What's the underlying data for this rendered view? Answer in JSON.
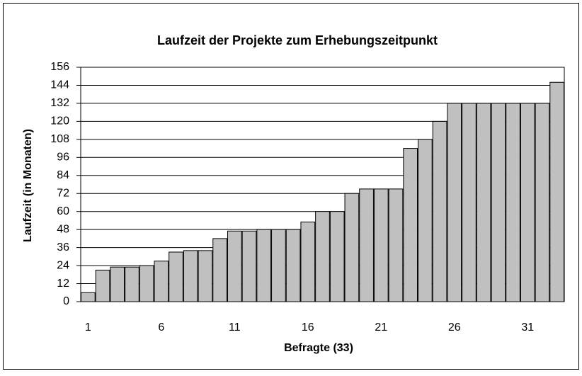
{
  "chart_data": {
    "type": "bar",
    "title": "Laufzeit der Projekte zum Erhebungszeitpunkt",
    "x_label": "Befragte (33)",
    "y_label": "Laufzeit  (in Monaten)",
    "categories": [
      1,
      null,
      null,
      null,
      null,
      6,
      null,
      null,
      null,
      null,
      11,
      null,
      null,
      null,
      null,
      16,
      null,
      null,
      null,
      null,
      21,
      null,
      null,
      null,
      null,
      26,
      null,
      null,
      null,
      null,
      31,
      null,
      null
    ],
    "values": [
      6,
      21,
      23,
      23,
      24,
      27,
      33,
      34,
      34,
      42,
      47,
      47,
      48,
      48,
      48,
      53,
      60,
      60,
      72,
      75,
      75,
      75,
      102,
      108,
      120,
      132,
      132,
      132,
      132,
      132,
      132,
      132,
      146
    ],
    "color": "#c0c0c0",
    "ylim": [
      0,
      156
    ],
    "yticks": [
      0,
      12,
      24,
      36,
      48,
      60,
      72,
      84,
      96,
      108,
      120,
      132,
      144,
      156
    ],
    "grid": true
  }
}
